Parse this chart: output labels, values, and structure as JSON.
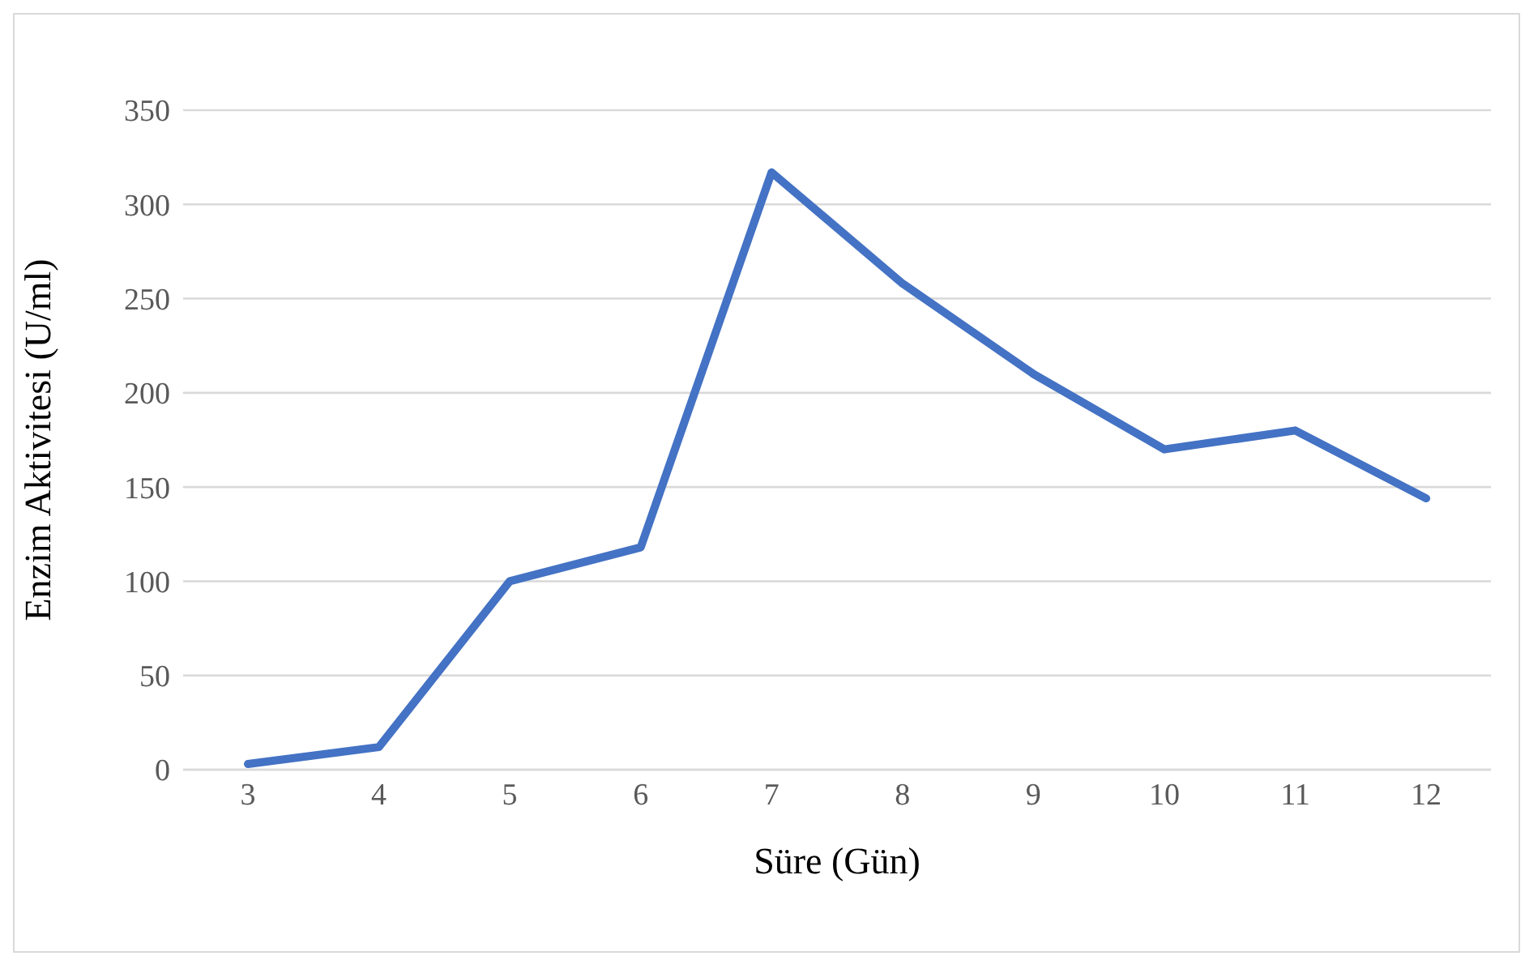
{
  "chart_data": {
    "type": "line",
    "xlabel": "Süre (Gün)",
    "ylabel": "Enzim Aktivitesi (U/ml)",
    "categories": [
      "3",
      "4",
      "5",
      "6",
      "7",
      "8",
      "9",
      "10",
      "11",
      "12"
    ],
    "values": [
      3,
      12,
      100,
      118,
      317,
      258,
      210,
      170,
      180,
      144
    ],
    "color": "#4472c4",
    "ylim": [
      0,
      350
    ],
    "yticks": [
      0,
      50,
      100,
      150,
      200,
      250,
      300,
      350
    ],
    "grid": "y",
    "marker": "none"
  }
}
